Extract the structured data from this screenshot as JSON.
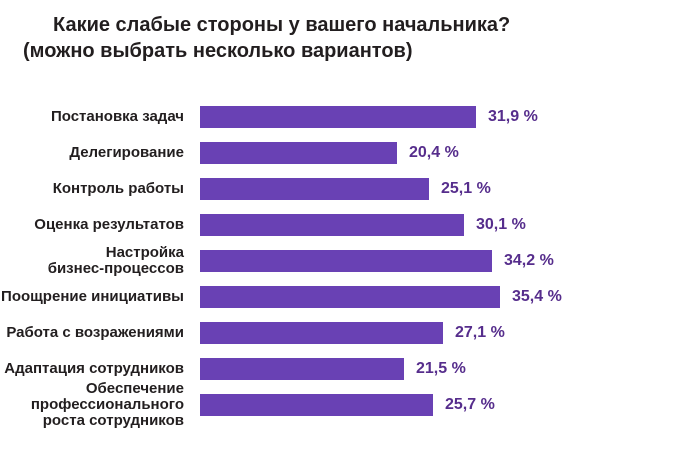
{
  "title": {
    "line1": "Какие слабые стороны у вашего начальника?",
    "line2": "(можно выбрать несколько вариантов)"
  },
  "colors": {
    "bar": "#6941b4",
    "value_text": "#562d8c",
    "label_text": "#221e1f",
    "background": "#ffffff"
  },
  "chart_data": {
    "type": "bar",
    "orientation": "horizontal",
    "title": "Какие слабые стороны у вашего начальника? (можно выбрать несколько вариантов)",
    "categories": [
      "Постановка задач",
      "Делегирование",
      "Контроль работы",
      "Оценка результатов",
      "Настройка бизнес-процессов",
      "Поощрение инициативы",
      "Работа с возражениями",
      "Адаптация сотрудников",
      "Обеспечение профессионального роста сотрудников"
    ],
    "label_lines": [
      [
        "Постановка задач"
      ],
      [
        "Делегирование"
      ],
      [
        "Контроль работы"
      ],
      [
        "Оценка результатов"
      ],
      [
        "Настройка",
        "бизнес-процессов"
      ],
      [
        "Поощрение инициативы"
      ],
      [
        "Работа с возражениями"
      ],
      [
        "Адаптация сотрудников"
      ],
      [
        "Обеспечение",
        "профессионального",
        "роста сотрудников"
      ]
    ],
    "values": [
      31.9,
      20.4,
      25.1,
      30.1,
      34.2,
      35.4,
      27.1,
      21.5,
      25.7
    ],
    "value_labels": [
      "31,9 %",
      "20,4 %",
      "25,1 %",
      "30,1 %",
      "34,2 %",
      "35,4 %",
      "27,1 %",
      "21,5 %",
      "25,7 %"
    ],
    "xlabel": "",
    "ylabel": "",
    "grid": false,
    "legend": false,
    "axis_visible": false
  }
}
